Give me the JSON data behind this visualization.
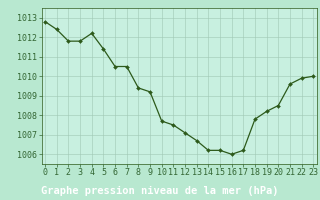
{
  "x": [
    0,
    1,
    2,
    3,
    4,
    5,
    6,
    7,
    8,
    9,
    10,
    11,
    12,
    13,
    14,
    15,
    16,
    17,
    18,
    19,
    20,
    21,
    22,
    23
  ],
  "y": [
    1012.8,
    1012.4,
    1011.8,
    1011.8,
    1012.2,
    1011.4,
    1010.5,
    1010.5,
    1009.4,
    1009.2,
    1007.7,
    1007.5,
    1007.1,
    1006.7,
    1006.2,
    1006.2,
    1006.0,
    1006.2,
    1007.8,
    1008.2,
    1008.5,
    1009.6,
    1009.9,
    1010.0
  ],
  "line_color": "#2d5a1b",
  "marker_color": "#2d5a1b",
  "bg_color": "#b8e8d0",
  "plot_bg_color": "#c8f0e0",
  "grid_color": "#a0c8b4",
  "xlabel": "Graphe pression niveau de la mer (hPa)",
  "xlabel_bg": "#3a7a2a",
  "xlabel_color": "#ffffff",
  "ylim": [
    1005.5,
    1013.5
  ],
  "yticks": [
    1006,
    1007,
    1008,
    1009,
    1010,
    1011,
    1012,
    1013
  ],
  "xticks": [
    0,
    1,
    2,
    3,
    4,
    5,
    6,
    7,
    8,
    9,
    10,
    11,
    12,
    13,
    14,
    15,
    16,
    17,
    18,
    19,
    20,
    21,
    22,
    23
  ],
  "xlabel_fontsize": 7.5,
  "tick_fontsize": 6.0,
  "ytick_color": "#336633",
  "xtick_color": "#336633"
}
